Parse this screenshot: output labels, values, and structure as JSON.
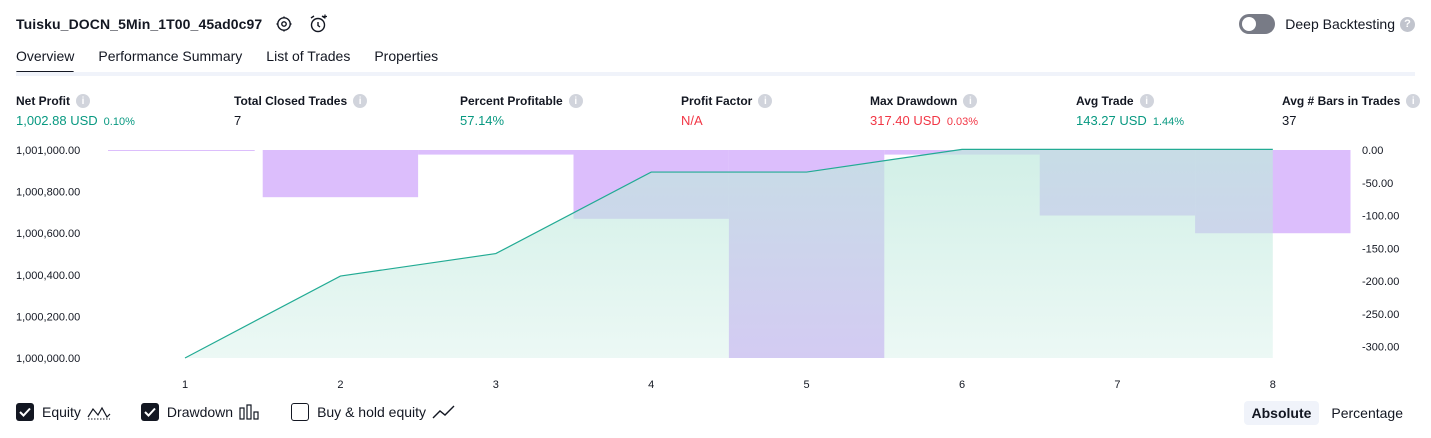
{
  "header": {
    "strategy_name": "Tuisku_DOCN_5Min_1T00_45ad0c97",
    "settings_icon": "gear-icon",
    "alert_icon": "alarm-clock-add-icon",
    "deep_backtesting_label": "Deep Backtesting",
    "deep_backtesting_enabled": false,
    "help_icon": "question-icon"
  },
  "tabs": [
    {
      "label": "Overview",
      "active": true
    },
    {
      "label": "Performance Summary",
      "active": false
    },
    {
      "label": "List of Trades",
      "active": false
    },
    {
      "label": "Properties",
      "active": false
    }
  ],
  "metrics": {
    "net_profit": {
      "label": "Net Profit",
      "value": "1,002.88 USD",
      "pct": "0.10%"
    },
    "total_closed_trades": {
      "label": "Total Closed Trades",
      "value": "7"
    },
    "percent_profitable": {
      "label": "Percent Profitable",
      "value": "57.14%"
    },
    "profit_factor": {
      "label": "Profit Factor",
      "value": "N/A"
    },
    "max_drawdown": {
      "label": "Max Drawdown",
      "value": "317.40 USD",
      "pct": "0.03%"
    },
    "avg_trade": {
      "label": "Avg Trade",
      "value": "143.27 USD",
      "pct": "1.44%"
    },
    "avg_bars": {
      "label": "Avg # Bars in Trades",
      "value": "37"
    }
  },
  "colors": {
    "positive": "#089981",
    "negative": "#f23645",
    "equity_line": "#22ab94",
    "equity_fill": "#bfe9dd",
    "drawdown_fill": "#d6b3fb",
    "text": "#131722"
  },
  "chart_data": {
    "type": "area",
    "x": [
      1,
      2,
      3,
      4,
      5,
      6,
      7,
      8
    ],
    "series": [
      {
        "name": "Equity",
        "axis": "left",
        "values": [
          1000000.0,
          1000394.0,
          1000502.0,
          1000894.0,
          1000894.0,
          1001002.88,
          1001002.88,
          1001002.88
        ]
      },
      {
        "name": "Drawdown",
        "axis": "right",
        "values": [
          -1.5,
          -72.0,
          -7.0,
          -105.0,
          -317.4,
          -7.0,
          -100.0,
          -127.0
        ]
      }
    ],
    "left_ticks": [
      "1,001,000.00",
      "1,000,800.00",
      "1,000,600.00",
      "1,000,400.00",
      "1,000,200.00",
      "1,000,000.00"
    ],
    "left_tick_values": [
      1001000,
      1000800,
      1000600,
      1000400,
      1000200,
      1000000
    ],
    "right_ticks": [
      "0.00",
      "-50.00",
      "-100.00",
      "-150.00",
      "-200.00",
      "-250.00",
      "-300.00"
    ],
    "right_tick_values": [
      0,
      -50,
      -100,
      -150,
      -200,
      -250,
      -300
    ],
    "ylim_left": [
      1000000,
      1001000
    ],
    "ylim_right": [
      -317.4,
      0
    ],
    "grid": false,
    "xlabel": "",
    "ylabel": ""
  },
  "legend": {
    "items": [
      {
        "label": "Equity",
        "checked": true,
        "icon": "area-chart-icon"
      },
      {
        "label": "Drawdown",
        "checked": true,
        "icon": "bar-chart-icon"
      },
      {
        "label": "Buy & hold equity",
        "checked": false,
        "icon": "line-chart-icon"
      }
    ]
  },
  "modes": [
    {
      "label": "Absolute",
      "active": true
    },
    {
      "label": "Percentage",
      "active": false
    }
  ]
}
